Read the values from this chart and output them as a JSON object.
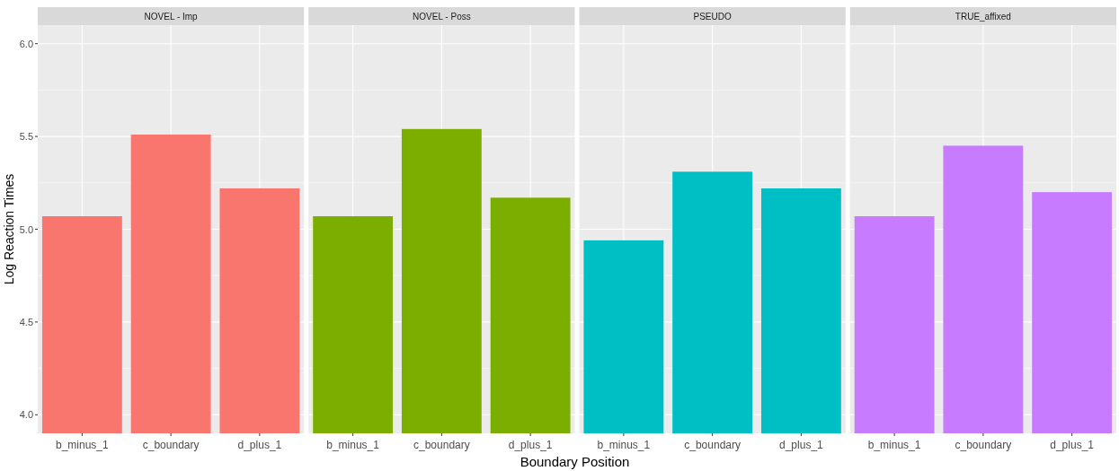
{
  "chart_data": [
    {
      "type": "bar",
      "title": "NOVEL - Imp",
      "ylabel": "Log Reaction Times",
      "categories": [
        "b_minus_1",
        "c_boundary",
        "d_plus_1"
      ],
      "values": [
        5.07,
        5.51,
        5.22
      ],
      "color": "#f8766d",
      "ylim": [
        3.9,
        6.1
      ],
      "yticks": [
        {
          "value": 4,
          "label": "4.0"
        },
        {
          "value": 4.5,
          "label": "4.5"
        },
        {
          "value": 5,
          "label": "5.0"
        },
        {
          "value": 5.5,
          "label": "5.5"
        },
        {
          "value": 6,
          "label": "6.0"
        }
      ],
      "grid": true
    },
    {
      "type": "bar",
      "title": "NOVEL - Poss",
      "xlabel": "Boundary Position",
      "categories": [
        "b_minus_1",
        "c_boundary",
        "d_plus_1"
      ],
      "values": [
        5.07,
        5.54,
        5.17
      ],
      "color": "#7cae00",
      "ylim": [
        3.9,
        6.1
      ],
      "yticks": [
        {
          "value": 4,
          "label": null
        },
        {
          "value": 4.5,
          "label": null
        },
        {
          "value": 5,
          "label": null
        },
        {
          "value": 5.5,
          "label": null
        },
        {
          "value": 6,
          "label": null
        }
      ],
      "grid": true,
      "tick_labels": "x"
    },
    {
      "type": "bar",
      "title": "PSEUDO",
      "categories": [
        "b_minus_1",
        "c_boundary",
        "d_plus_1"
      ],
      "values": [
        4.94,
        5.31,
        5.22
      ],
      "color": "#00bfc4",
      "ylim": [
        3.9,
        6.1
      ],
      "yticks": [
        {
          "value": 4,
          "label": null
        },
        {
          "value": 4.5,
          "label": null
        },
        {
          "value": 5,
          "label": null
        },
        {
          "value": 5.5,
          "label": null
        },
        {
          "value": 6,
          "label": null
        }
      ],
      "grid": true,
      "tick_labels": "x"
    },
    {
      "type": "bar",
      "title": "TRUE_affixed",
      "categories": [
        "b_minus_1",
        "c_boundary",
        "d_plus_1"
      ],
      "values": [
        5.07,
        5.45,
        5.2
      ],
      "color": "#c77cff",
      "ylim": [
        3.9,
        6.1
      ],
      "yticks": [
        {
          "value": 4,
          "label": null
        },
        {
          "value": 4.5,
          "label": null
        },
        {
          "value": 5,
          "label": null
        },
        {
          "value": 5.5,
          "label": null
        },
        {
          "value": 6,
          "label": null
        }
      ],
      "grid": true,
      "tick_labels": "x"
    }
  ]
}
